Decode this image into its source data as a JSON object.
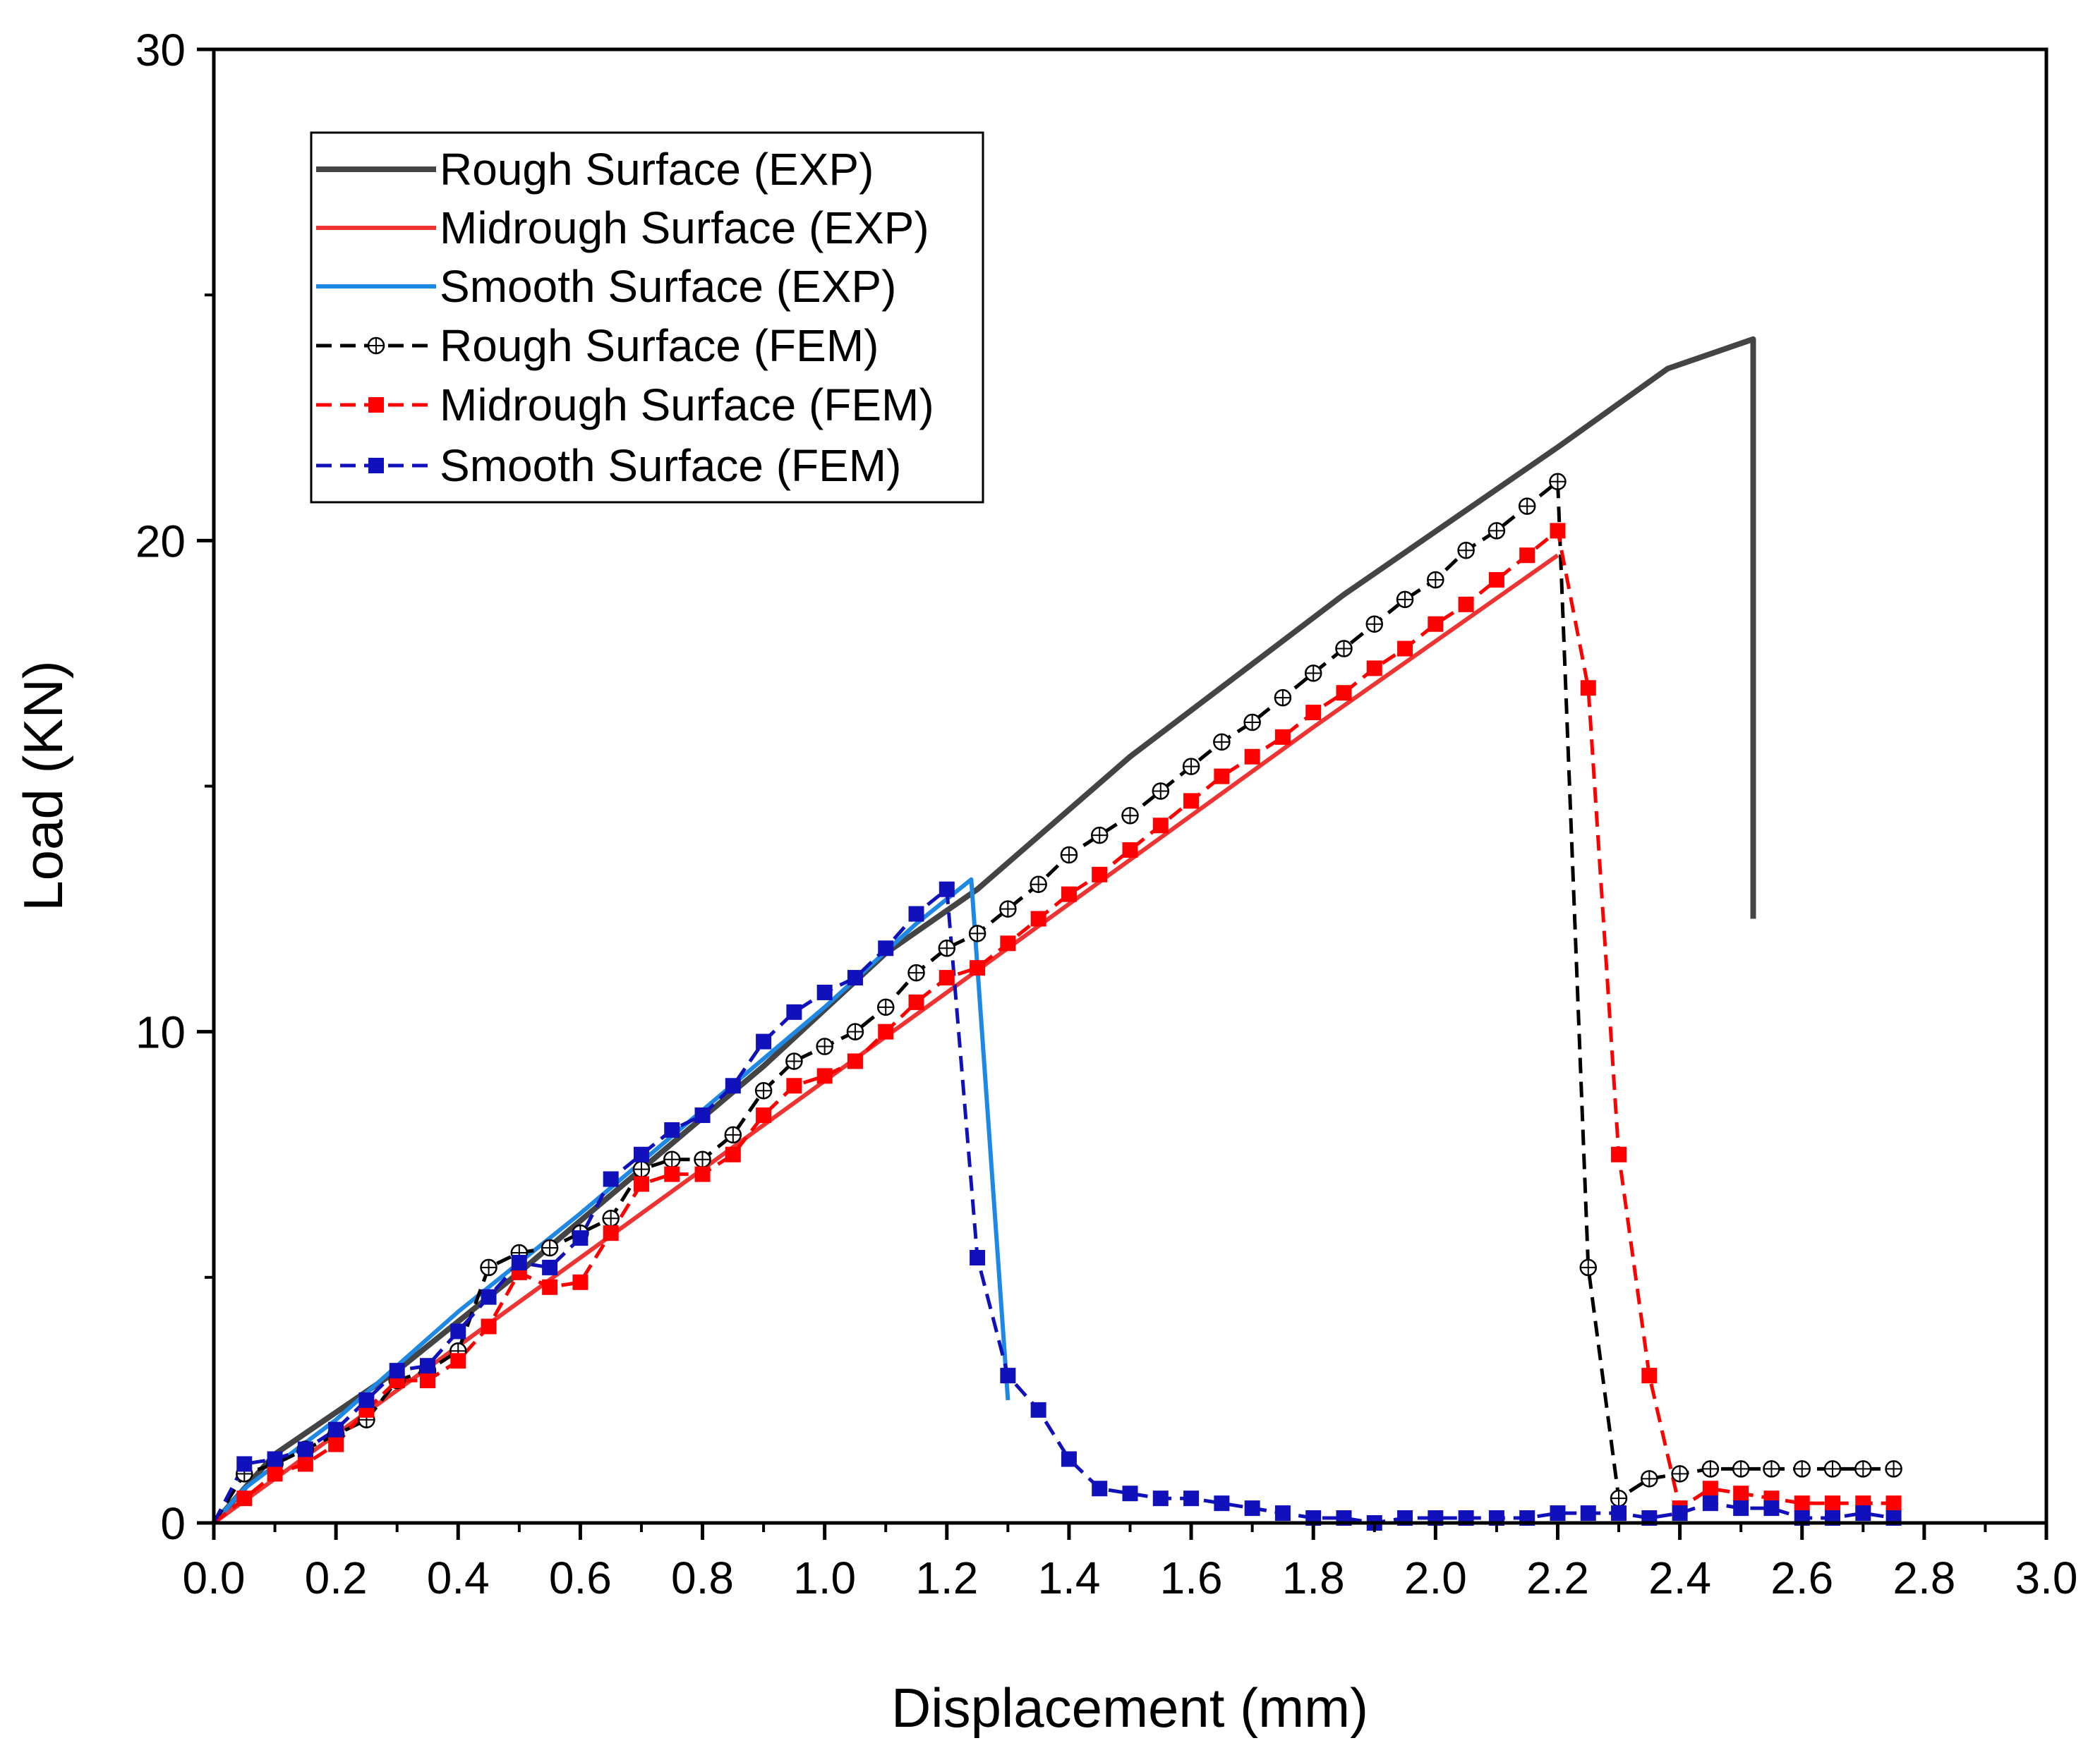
{
  "chart_data": {
    "type": "line",
    "title": "",
    "xlabel": "Displacement (mm)",
    "ylabel": "Load (KN)",
    "xlim": [
      0,
      3.0
    ],
    "ylim": [
      0,
      30
    ],
    "xticks": [
      "0.0",
      "0.2",
      "0.4",
      "0.6",
      "0.8",
      "1.0",
      "1.2",
      "1.4",
      "1.6",
      "1.8",
      "2.0",
      "2.2",
      "2.4",
      "2.6",
      "2.8",
      "3.0"
    ],
    "xtick_values": [
      0,
      0.2,
      0.4,
      0.6,
      0.8,
      1.0,
      1.2,
      1.4,
      1.6,
      1.8,
      2.0,
      2.2,
      2.4,
      2.6,
      2.8,
      3.0
    ],
    "yticks": [
      "0",
      "10",
      "20",
      "30"
    ],
    "ytick_values": [
      0,
      10,
      20,
      30
    ],
    "grid": false,
    "legend_position": "top-left",
    "series": [
      {
        "name": "Rough Surface (EXP)",
        "color": "#444444",
        "style": "solid",
        "marker": "none",
        "x": [
          0,
          0.1,
          0.3,
          0.5,
          0.7,
          0.9,
          1.1,
          1.25,
          1.5,
          1.85,
          2.2,
          2.38,
          2.52,
          2.52
        ],
        "y": [
          0,
          1.4,
          3.1,
          5.1,
          7.2,
          9.3,
          11.6,
          12.9,
          15.6,
          18.9,
          21.9,
          23.5,
          24.1,
          12.3
        ]
      },
      {
        "name": "Midrough Surface (EXP)",
        "color": "#ee3333",
        "style": "solid",
        "marker": "none",
        "x": [
          0,
          0.2,
          0.6,
          1.0,
          1.4,
          1.8,
          2.2
        ],
        "y": [
          0,
          1.8,
          5.4,
          9.0,
          12.6,
          16.2,
          19.7
        ]
      },
      {
        "name": "Smooth Surface (EXP)",
        "color": "#1e88e5",
        "style": "solid",
        "marker": "none",
        "x": [
          0,
          0.05,
          0.2,
          0.4,
          0.6,
          0.8,
          1.0,
          1.15,
          1.24,
          1.3
        ],
        "y": [
          0,
          0.7,
          2.1,
          4.3,
          6.3,
          8.4,
          10.5,
          12.2,
          13.1,
          2.5
        ]
      },
      {
        "name": "Rough Surface (FEM)",
        "color": "#000000",
        "style": "dashed",
        "marker": "circle-plus",
        "x": [
          0,
          0.05,
          0.1,
          0.15,
          0.2,
          0.25,
          0.3,
          0.35,
          0.4,
          0.45,
          0.5,
          0.55,
          0.6,
          0.65,
          0.7,
          0.75,
          0.8,
          0.85,
          0.9,
          0.95,
          1.0,
          1.05,
          1.1,
          1.15,
          1.2,
          1.25,
          1.3,
          1.35,
          1.4,
          1.45,
          1.5,
          1.55,
          1.6,
          1.65,
          1.7,
          1.75,
          1.8,
          1.85,
          1.9,
          1.95,
          2.0,
          2.05,
          2.1,
          2.15,
          2.2,
          2.25,
          2.3,
          2.35,
          2.4,
          2.45,
          2.5,
          2.55,
          2.6,
          2.65,
          2.7,
          2.75
        ],
        "y": [
          0,
          1.0,
          1.2,
          1.5,
          1.8,
          2.1,
          2.9,
          3.1,
          3.5,
          5.2,
          5.5,
          5.6,
          5.9,
          6.2,
          7.2,
          7.4,
          7.4,
          7.9,
          8.8,
          9.4,
          9.7,
          10.0,
          10.5,
          11.2,
          11.7,
          12.0,
          12.5,
          13.0,
          13.6,
          14.0,
          14.4,
          14.9,
          15.4,
          15.9,
          16.3,
          16.8,
          17.3,
          17.8,
          18.3,
          18.8,
          19.2,
          19.8,
          20.2,
          20.7,
          21.2,
          5.2,
          0.5,
          0.9,
          1.0,
          1.1,
          1.1,
          1.1,
          1.1,
          1.1,
          1.1,
          1.1
        ]
      },
      {
        "name": "Midrough Surface (FEM)",
        "color": "#ff0000",
        "style": "dashed",
        "marker": "square",
        "x": [
          0,
          0.05,
          0.1,
          0.15,
          0.2,
          0.25,
          0.3,
          0.35,
          0.4,
          0.45,
          0.5,
          0.55,
          0.6,
          0.65,
          0.7,
          0.75,
          0.8,
          0.85,
          0.9,
          0.95,
          1.0,
          1.05,
          1.1,
          1.15,
          1.2,
          1.25,
          1.3,
          1.35,
          1.4,
          1.45,
          1.5,
          1.55,
          1.6,
          1.65,
          1.7,
          1.75,
          1.8,
          1.85,
          1.9,
          1.95,
          2.0,
          2.05,
          2.1,
          2.15,
          2.2,
          2.25,
          2.3,
          2.35,
          2.4,
          2.45,
          2.5,
          2.55,
          2.6,
          2.65,
          2.7,
          2.75
        ],
        "y": [
          0,
          0.5,
          1.0,
          1.2,
          1.6,
          2.3,
          2.9,
          2.9,
          3.3,
          4.0,
          5.1,
          4.8,
          4.9,
          5.9,
          6.9,
          7.1,
          7.1,
          7.5,
          8.3,
          8.9,
          9.1,
          9.4,
          10.0,
          10.6,
          11.1,
          11.3,
          11.8,
          12.3,
          12.8,
          13.2,
          13.7,
          14.2,
          14.7,
          15.2,
          15.6,
          16.0,
          16.5,
          16.9,
          17.4,
          17.8,
          18.3,
          18.7,
          19.2,
          19.7,
          20.2,
          17.0,
          7.5,
          3.0,
          0.3,
          0.7,
          0.6,
          0.5,
          0.4,
          0.4,
          0.4,
          0.4
        ]
      },
      {
        "name": "Smooth Surface (FEM)",
        "color": "#1111bb",
        "style": "dashed",
        "marker": "square",
        "x": [
          0,
          0.05,
          0.1,
          0.15,
          0.2,
          0.25,
          0.3,
          0.35,
          0.4,
          0.45,
          0.5,
          0.55,
          0.6,
          0.65,
          0.7,
          0.75,
          0.8,
          0.85,
          0.9,
          0.95,
          1.0,
          1.05,
          1.1,
          1.15,
          1.2,
          1.25,
          1.3,
          1.35,
          1.4,
          1.45,
          1.5,
          1.55,
          1.6,
          1.65,
          1.7,
          1.75,
          1.8,
          1.85,
          1.9,
          1.95,
          2.0,
          2.05,
          2.1,
          2.15,
          2.2,
          2.25,
          2.3,
          2.35,
          2.4,
          2.45,
          2.5,
          2.55,
          2.6,
          2.65,
          2.7,
          2.75
        ],
        "y": [
          0,
          1.2,
          1.3,
          1.5,
          1.9,
          2.5,
          3.1,
          3.2,
          3.9,
          4.6,
          5.3,
          5.2,
          5.8,
          7.0,
          7.5,
          8.0,
          8.3,
          8.9,
          9.8,
          10.4,
          10.8,
          11.1,
          11.7,
          12.4,
          12.9,
          5.4,
          3.0,
          2.3,
          1.3,
          0.7,
          0.6,
          0.5,
          0.5,
          0.4,
          0.3,
          0.2,
          0.1,
          0.1,
          0.0,
          0.1,
          0.1,
          0.1,
          0.1,
          0.1,
          0.2,
          0.2,
          0.2,
          0.1,
          0.2,
          0.4,
          0.3,
          0.3,
          0.1,
          0.1,
          0.2,
          0.1
        ]
      }
    ]
  }
}
